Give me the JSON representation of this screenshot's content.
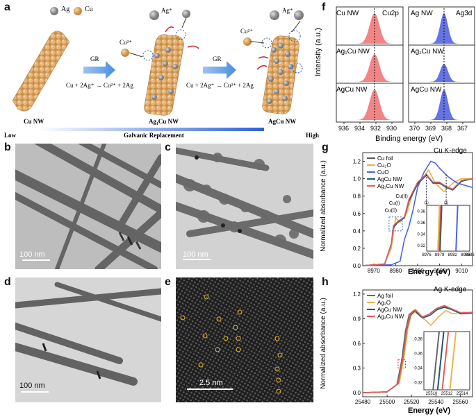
{
  "panel_a": {
    "label": "a",
    "legend": {
      "ag": "Ag",
      "cu": "Cu"
    },
    "ion_ag": "Ag⁺",
    "ion_cu": "Cu²⁺",
    "gr_1": "GR",
    "gr_2": "GR",
    "reaction_1": "Cu + 2Ag⁺ → Cu²⁺ + 2Ag",
    "reaction_2": "Cu + 2Ag⁺ → Cu²⁺ + 2Ag",
    "wire_1": "Cu NW",
    "wire_2": "Ag₁Cu NW",
    "wire_3": "AgCu NW",
    "scale_low": "Low",
    "scale_title": "Galvanic Replacement",
    "scale_high": "High"
  },
  "panel_b": {
    "label": "b",
    "scale": "100 nm"
  },
  "panel_c": {
    "label": "c",
    "scale": "100 nm"
  },
  "panel_d": {
    "label": "d",
    "scale": "100 nm"
  },
  "panel_e": {
    "label": "e",
    "scale": "2.5 nm"
  },
  "panel_f": {
    "label": "f",
    "ylabel": "Intensity (a.u.)",
    "xlabel": "Binding energy (eV)",
    "left_title": "Cu2p",
    "right_title": "Ag3d",
    "left_rows": [
      "Cu NW",
      "Ag₁Cu NW",
      "AgCu NW"
    ],
    "right_rows": [
      "Ag NW",
      "Ag₁Cu NW",
      "AgCu NW"
    ],
    "left_ticks": [
      "936",
      "934",
      "932",
      "930"
    ],
    "right_ticks": [
      "370",
      "369",
      "368",
      "367"
    ],
    "left_color": "#ee6f6f",
    "right_color": "#4a5be0"
  },
  "chart_data": [
    {
      "type": "line",
      "panel": "g",
      "title": "Cu K-edge",
      "xlabel": "Energy (eV)",
      "ylabel": "Normalized absorbance (a.u.)",
      "xlim": [
        8965,
        9015
      ],
      "ylim": [
        0,
        1.3
      ],
      "x_ticks": [
        8970,
        8980,
        8990,
        9000,
        9010
      ],
      "y_ticks": [
        0.0,
        0.2,
        0.4,
        0.6,
        0.8,
        1.0,
        1.2
      ],
      "legend_position": "top-left",
      "annotations": [
        "Cu(0)",
        "Cu(I)",
        "Cu(II)",
        "①",
        "②"
      ],
      "series": [
        {
          "name": "Cu foil",
          "color": "#555555",
          "x": [
            8965,
            8975,
            8978,
            8979,
            8981,
            8984,
            8986,
            8990,
            8994,
            8997,
            9000,
            9003,
            9006,
            9010,
            9015
          ],
          "y": [
            0.0,
            0.02,
            0.25,
            0.45,
            0.5,
            0.55,
            0.75,
            0.95,
            1.05,
            0.95,
            0.95,
            0.9,
            0.88,
            0.98,
            1.0
          ]
        },
        {
          "name": "Cu₂O",
          "color": "#e8b44a",
          "x": [
            8965,
            8975,
            8978,
            8980,
            8982,
            8985,
            8988,
            8992,
            8995,
            8998,
            9002,
            9006,
            9010,
            9015
          ],
          "y": [
            0.0,
            0.02,
            0.2,
            0.55,
            0.5,
            0.6,
            0.85,
            1.0,
            1.1,
            0.95,
            0.85,
            0.95,
            1.0,
            1.0
          ]
        },
        {
          "name": "CuO",
          "color": "#4a63e8",
          "x": [
            8965,
            8978,
            8982,
            8984,
            8986,
            8988,
            8990,
            8993,
            8996,
            8998,
            9000,
            9004,
            9008,
            9012,
            9015
          ],
          "y": [
            0.0,
            0.01,
            0.05,
            0.3,
            0.45,
            0.65,
            0.9,
            1.08,
            1.2,
            1.18,
            1.12,
            1.02,
            0.95,
            0.92,
            0.9
          ]
        },
        {
          "name": "AgCu NW",
          "color": "#1a5a78",
          "x": [
            8965,
            8975,
            8978,
            8979,
            8981,
            8984,
            8986,
            8990,
            8994,
            8997,
            9000,
            9003,
            9006,
            9010,
            9015
          ],
          "y": [
            0.0,
            0.02,
            0.25,
            0.44,
            0.5,
            0.55,
            0.74,
            0.94,
            1.04,
            0.95,
            0.95,
            0.9,
            0.87,
            0.97,
            1.0
          ]
        },
        {
          "name": "Ag₁Cu NW",
          "color": "#e45c5c",
          "x": [
            8965,
            8975,
            8978,
            8979,
            8981,
            8984,
            8986,
            8990,
            8994,
            8997,
            9000,
            9003,
            9006,
            9010,
            9015
          ],
          "y": [
            0.0,
            0.02,
            0.25,
            0.46,
            0.51,
            0.56,
            0.76,
            0.96,
            1.05,
            0.96,
            0.96,
            0.91,
            0.88,
            0.98,
            1.0
          ]
        }
      ],
      "inset": {
        "xlim": [
          8976,
          8986
        ],
        "ylim": [
          0.31,
          0.39
        ],
        "x_ticks": [
          8976,
          8979,
          8982,
          8985,
          8986
        ],
        "y_ticks": [
          0.32,
          0.34,
          0.36,
          0.38
        ]
      }
    },
    {
      "type": "line",
      "panel": "h",
      "title": "Ag K-edge",
      "xlabel": "Energy (eV)",
      "ylabel": "Normalized absorbance (a.u.)",
      "xlim": [
        25480,
        25570
      ],
      "ylim": [
        -0.05,
        1.25
      ],
      "x_ticks": [
        25480,
        25500,
        25520,
        25540,
        25560
      ],
      "y_ticks": [
        0.0,
        0.3,
        0.6,
        0.9,
        1.2
      ],
      "legend_position": "top-left",
      "series": [
        {
          "name": "Ag foil",
          "color": "#666666",
          "x": [
            25480,
            25500,
            25508,
            25512,
            25515,
            25518,
            25522,
            25528,
            25534,
            25540,
            25546,
            25552,
            25560,
            25570
          ],
          "y": [
            0.0,
            0.01,
            0.1,
            0.4,
            0.75,
            0.95,
            1.0,
            0.92,
            0.95,
            1.02,
            1.05,
            1.02,
            0.96,
            0.98
          ]
        },
        {
          "name": "Ag₂O",
          "color": "#e8b44a",
          "x": [
            25480,
            25500,
            25510,
            25514,
            25517,
            25520,
            25524,
            25530,
            25536,
            25542,
            25548,
            25554,
            25562,
            25570
          ],
          "y": [
            0.0,
            0.01,
            0.12,
            0.45,
            0.78,
            0.95,
            1.0,
            0.9,
            0.82,
            0.92,
            1.0,
            0.96,
            0.98,
            0.97
          ]
        },
        {
          "name": "AgCu NW",
          "color": "#1a5a78",
          "x": [
            25480,
            25500,
            25509,
            25513,
            25516,
            25519,
            25523,
            25529,
            25535,
            25541,
            25547,
            25553,
            25561,
            25570
          ],
          "y": [
            0.0,
            0.01,
            0.11,
            0.42,
            0.76,
            0.94,
            1.0,
            0.91,
            0.94,
            1.01,
            1.04,
            1.01,
            0.96,
            0.97
          ]
        },
        {
          "name": "Ag₁Cu NW",
          "color": "#e45c5c",
          "x": [
            25480,
            25500,
            25509,
            25513,
            25516,
            25519,
            25523,
            25529,
            25535,
            25541,
            25547,
            25553,
            25561,
            25570
          ],
          "y": [
            0.0,
            0.01,
            0.11,
            0.43,
            0.77,
            0.95,
            1.01,
            0.92,
            0.96,
            1.03,
            1.06,
            1.02,
            0.97,
            0.98
          ]
        }
      ],
      "inset": {
        "xlim": [
          25509,
          25515
        ],
        "ylim": [
          0.31,
          0.39
        ],
        "x_ticks": [
          25510,
          25512,
          25514
        ],
        "y_ticks": [
          0.32,
          0.34,
          0.36,
          0.38
        ]
      }
    }
  ]
}
